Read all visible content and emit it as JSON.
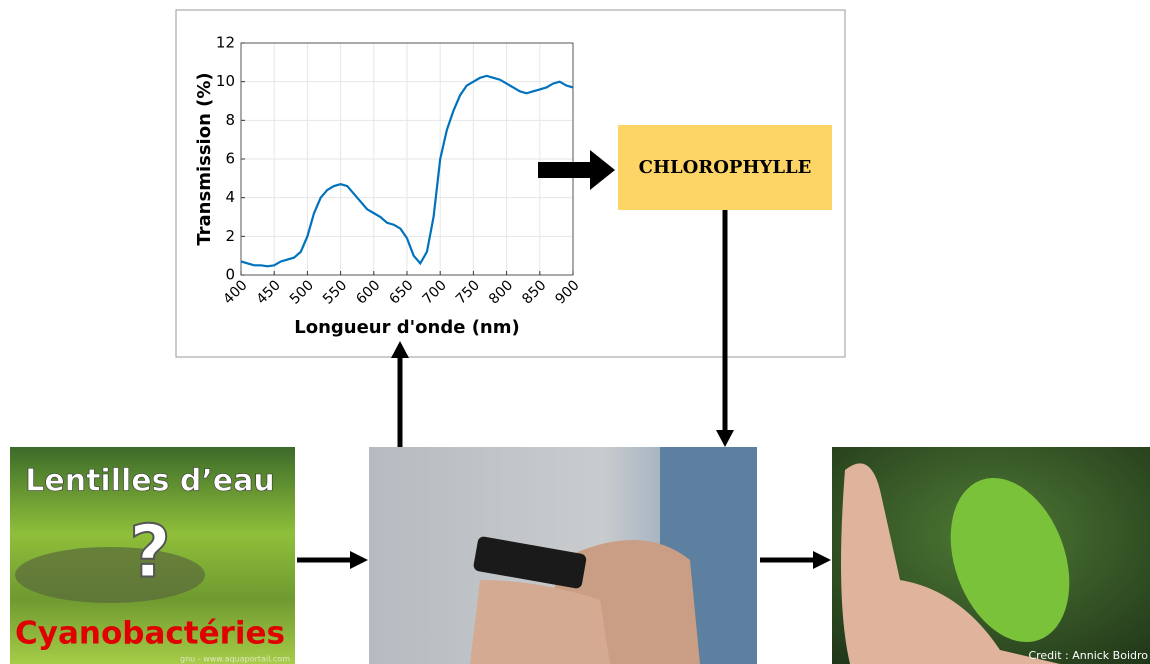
{
  "chart": {
    "type": "line",
    "xlabel": "Longueur d'onde (nm)",
    "ylabel": "Transmission (%)",
    "color": "#0072bd",
    "xlim": [
      400,
      900
    ],
    "ylim": [
      0,
      12
    ],
    "xticks": [
      400,
      450,
      500,
      550,
      600,
      650,
      700,
      750,
      800,
      850,
      900
    ],
    "yticks": [
      0,
      2,
      4,
      6,
      8,
      10,
      12
    ],
    "grid": true,
    "x": [
      400,
      410,
      420,
      430,
      440,
      450,
      460,
      470,
      480,
      490,
      500,
      510,
      520,
      530,
      540,
      550,
      560,
      570,
      580,
      590,
      600,
      610,
      620,
      630,
      640,
      650,
      660,
      670,
      680,
      690,
      700,
      710,
      720,
      730,
      740,
      750,
      760,
      770,
      780,
      790,
      800,
      810,
      820,
      830,
      840,
      850,
      860,
      870,
      880,
      890,
      900
    ],
    "values": [
      0.7,
      0.6,
      0.5,
      0.5,
      0.45,
      0.5,
      0.7,
      0.8,
      0.9,
      1.2,
      2.0,
      3.2,
      4.0,
      4.4,
      4.6,
      4.7,
      4.6,
      4.2,
      3.8,
      3.4,
      3.2,
      3.0,
      2.7,
      2.6,
      2.4,
      1.9,
      1.0,
      0.6,
      1.2,
      3.0,
      6.0,
      7.5,
      8.5,
      9.3,
      9.8,
      10.0,
      10.2,
      10.3,
      10.2,
      10.1,
      9.9,
      9.7,
      9.5,
      9.4,
      9.5,
      9.6,
      9.7,
      9.9,
      10.0,
      9.8,
      9.7
    ]
  },
  "result_box": {
    "label": "CHLOROPHYLLE"
  },
  "left_image": {
    "top_text": "Lentilles d’eau",
    "mark": "?",
    "bottom_text": "Cyanobactéries",
    "source": "gnu - www.aquaportail.com"
  },
  "right_image": {
    "credit": "Credit : Annick Boidro"
  }
}
